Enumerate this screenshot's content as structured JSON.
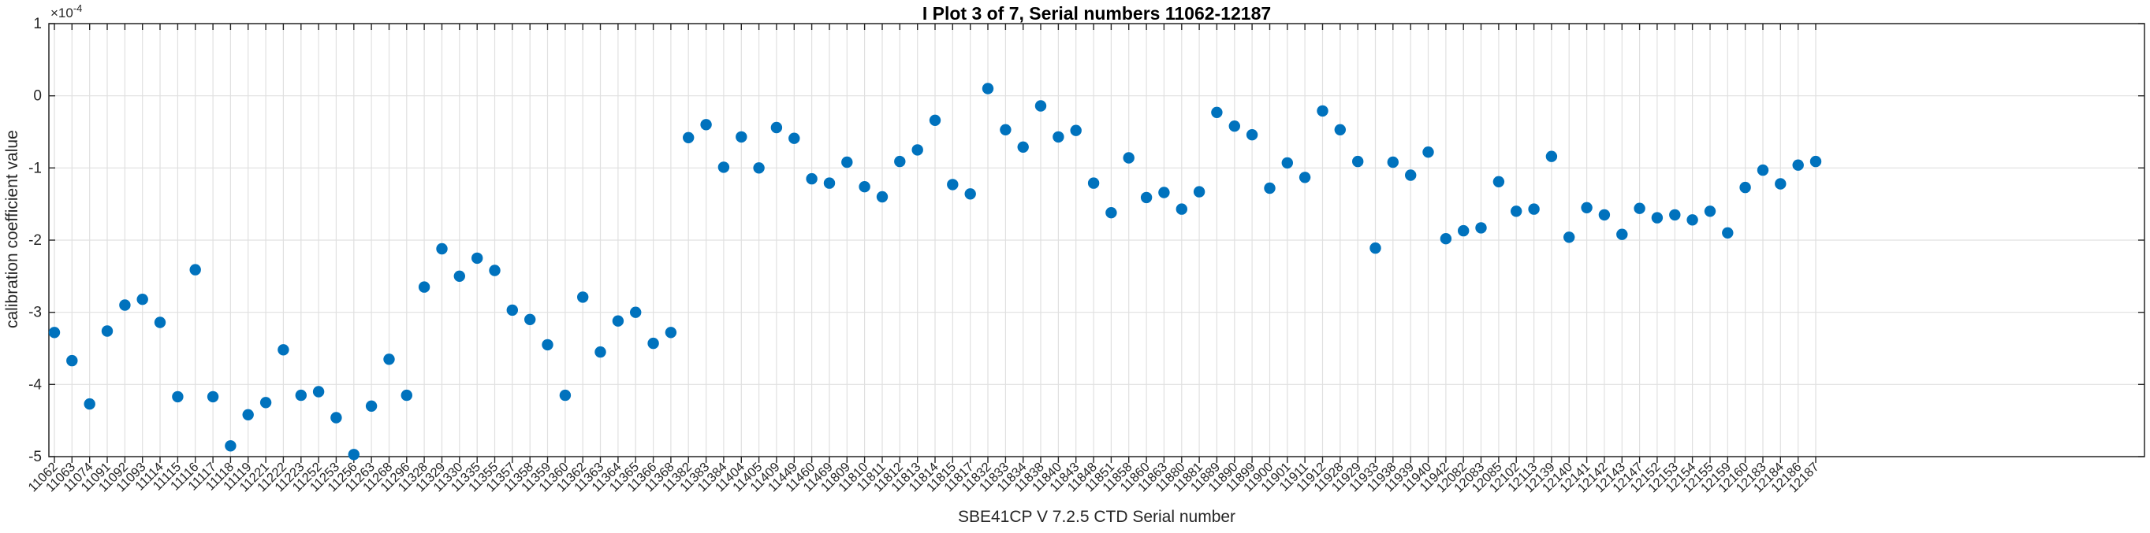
{
  "chart_data": {
    "type": "scatter",
    "title": "I Plot 3 of 7, Serial numbers 11062-12187",
    "xlabel": "SBE41CP V 7.2.5 CTD Serial number",
    "ylabel": "calibration coefficient value",
    "y_exponent": {
      "base": "×10",
      "power": "-4"
    },
    "y_ticks": [
      1,
      0,
      -1,
      -2,
      -3,
      -4,
      -5
    ],
    "ylim": [
      -5,
      1
    ],
    "y_unit_scale": "1e-4",
    "grid": "on",
    "legend": "none",
    "marker": "filled-circle",
    "colors": {
      "marker": "#0072BD",
      "grid": "#e0e0e0",
      "axis": "#262626",
      "tick_label": "#262626",
      "background": "#ffffff"
    },
    "categories": [
      11062,
      11063,
      11074,
      11091,
      11092,
      11093,
      11114,
      11115,
      11116,
      11117,
      11118,
      11119,
      11221,
      11222,
      11223,
      11252,
      11253,
      11256,
      11263,
      11268,
      11296,
      11328,
      11329,
      11330,
      11335,
      11355,
      11357,
      11358,
      11359,
      11360,
      11362,
      11363,
      11364,
      11365,
      11366,
      11368,
      11382,
      11383,
      11384,
      11404,
      11405,
      11409,
      11449,
      11460,
      11469,
      11809,
      11810,
      11811,
      11812,
      11813,
      11814,
      11815,
      11817,
      11832,
      11833,
      11834,
      11838,
      11840,
      11843,
      11848,
      11851,
      11858,
      11860,
      11863,
      11880,
      11881,
      11889,
      11890,
      11899,
      11900,
      11901,
      11911,
      11912,
      11928,
      11929,
      11933,
      11938,
      11939,
      11940,
      11942,
      12082,
      12083,
      12085,
      12102,
      12113,
      12139,
      12140,
      12141,
      12142,
      12143,
      12147,
      12152,
      12153,
      12154,
      12155,
      12159,
      12160,
      12183,
      12184,
      12186,
      12187
    ],
    "values": [
      -3.28,
      -3.67,
      -4.27,
      -3.26,
      -2.9,
      -2.82,
      -3.14,
      -4.17,
      -2.41,
      -4.17,
      -4.85,
      -4.42,
      -4.25,
      -3.52,
      -4.15,
      -4.1,
      -4.46,
      -4.97,
      -4.3,
      -3.65,
      -4.15,
      -2.65,
      -2.12,
      -2.5,
      -2.25,
      -2.42,
      -2.97,
      -3.1,
      -3.45,
      -4.15,
      -2.79,
      -3.55,
      -3.12,
      -3.0,
      -3.43,
      -3.28,
      -0.58,
      -0.4,
      -0.99,
      -0.57,
      -1.0,
      -0.44,
      -0.59,
      -1.15,
      -1.21,
      -0.92,
      -1.26,
      -1.4,
      -0.91,
      -0.75,
      -0.34,
      -1.23,
      -1.36,
      0.1,
      -0.47,
      -0.71,
      -0.14,
      -0.57,
      -0.48,
      -1.21,
      -1.62,
      -0.86,
      -1.41,
      -1.34,
      -1.57,
      -1.33,
      -0.23,
      -0.42,
      -0.54,
      -1.28,
      -0.93,
      -1.13,
      -0.21,
      -0.47,
      -0.91,
      -2.11,
      -0.92,
      -1.1,
      -0.78,
      -1.98,
      -1.87,
      -1.83,
      -1.19,
      -1.6,
      -1.57,
      -0.84,
      -1.96,
      -1.55,
      -1.65,
      -1.92,
      -1.56,
      -1.69,
      -1.65,
      -1.72,
      -1.6,
      -1.9,
      -1.27,
      -1.03,
      -1.22,
      -0.96,
      -0.91
    ]
  }
}
